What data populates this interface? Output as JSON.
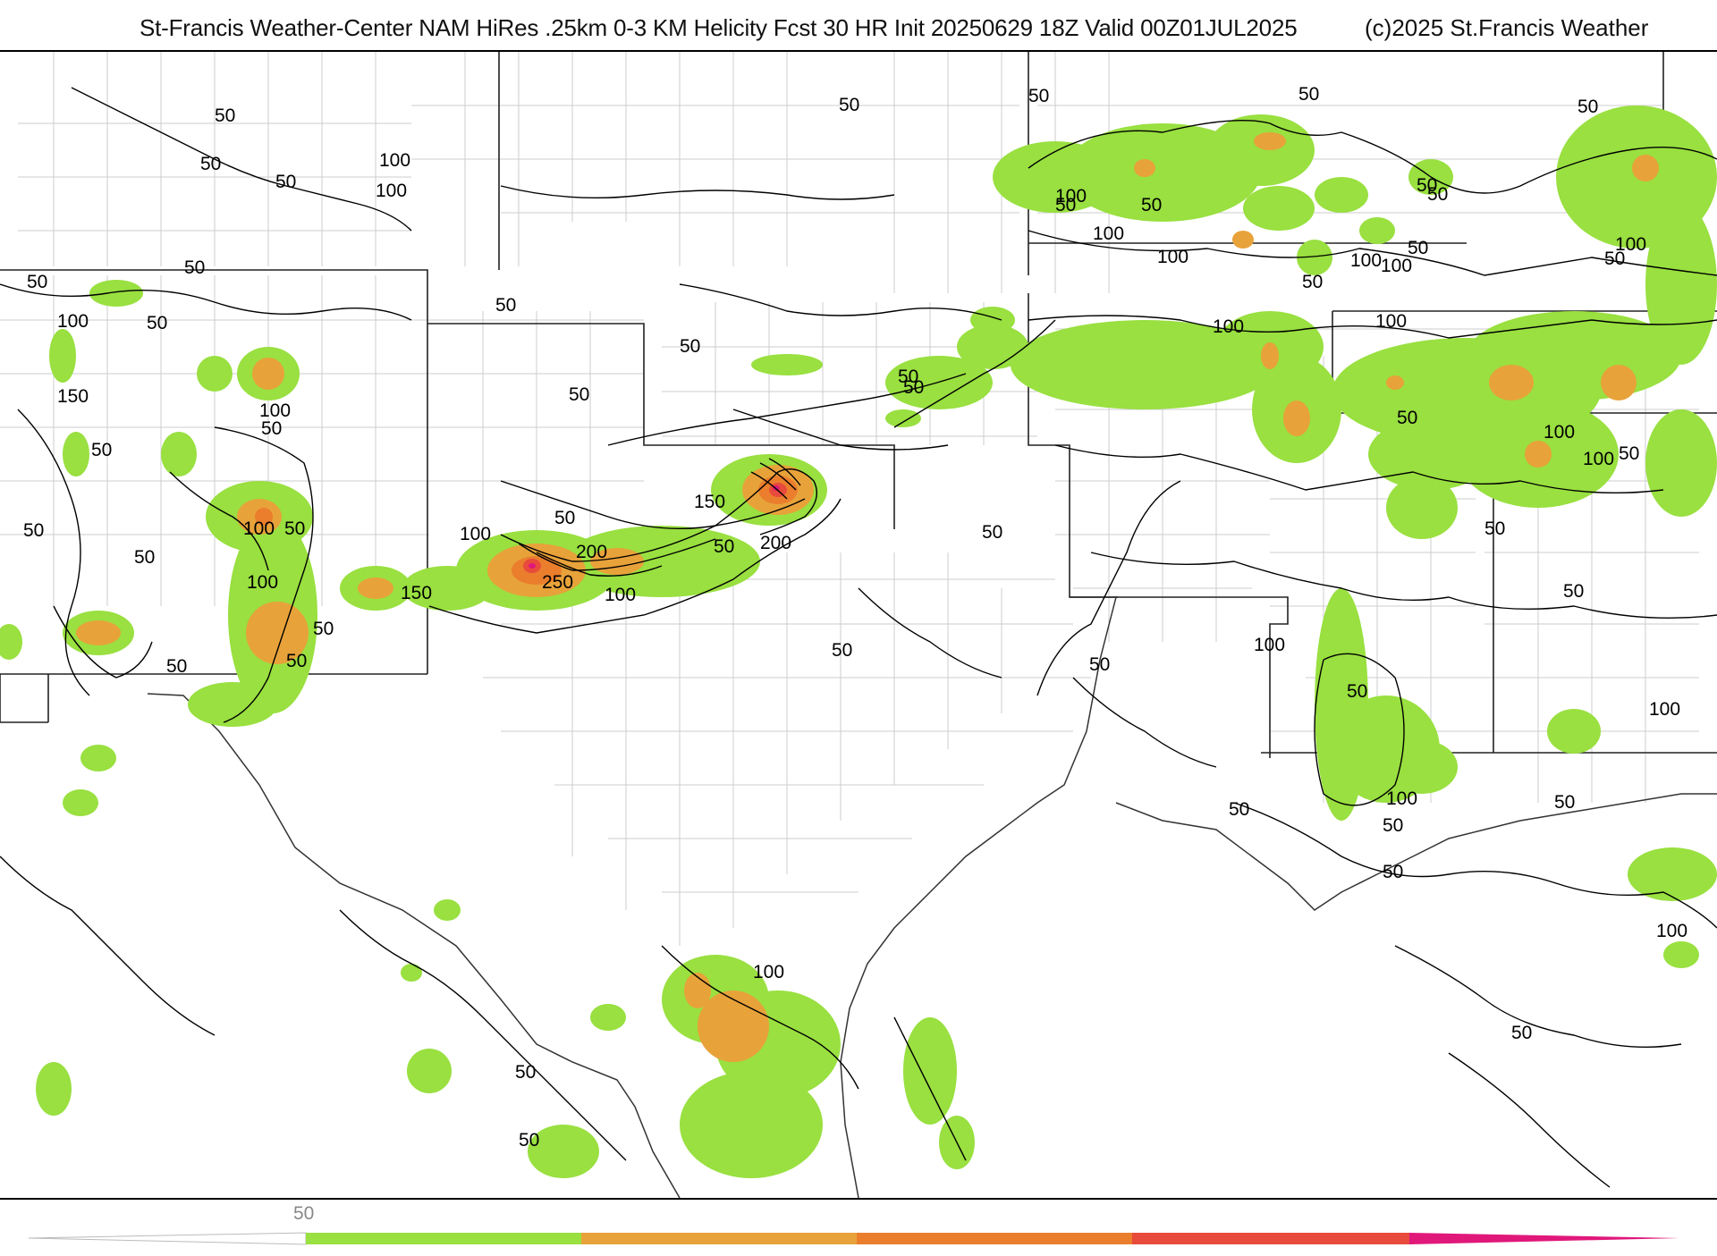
{
  "title": "St-Francis Weather-Center NAM HiRes .25km 0-3 KM Helicity Fcst 30 HR Init 20250629 18Z  Valid 00Z01JUL2025",
  "copyright": "(c)2025 St.Francis Weather",
  "colors": {
    "level_50": "#99e040",
    "level_100": "#e8a23a",
    "level_150": "#ea7e2c",
    "level_200": "#e84a3c",
    "level_250": "#e0187a",
    "contour": "#000000",
    "state_border": "#222222",
    "county_border": "#c8c8c8"
  },
  "colorbar": {
    "tick_label": "50"
  },
  "contour_labels": [
    "50",
    "50",
    "50",
    "100",
    "100",
    "50",
    "50",
    "50",
    "50",
    "50",
    "50",
    "50",
    "50",
    "100",
    "150",
    "100",
    "50",
    "50",
    "100",
    "50",
    "50",
    "100",
    "50",
    "50",
    "150",
    "50",
    "50",
    "50",
    "150",
    "100",
    "50",
    "200",
    "250",
    "100",
    "200",
    "50",
    "50",
    "100",
    "50",
    "50",
    "50",
    "50",
    "100",
    "50",
    "50",
    "50",
    "50",
    "100",
    "100",
    "100",
    "100",
    "50",
    "50",
    "100",
    "50",
    "100",
    "50",
    "50",
    "100",
    "100",
    "50",
    "50",
    "100",
    "50",
    "50",
    "50",
    "100",
    "50",
    "100",
    "50",
    "50",
    "50",
    "100",
    "100",
    "50",
    "50"
  ]
}
